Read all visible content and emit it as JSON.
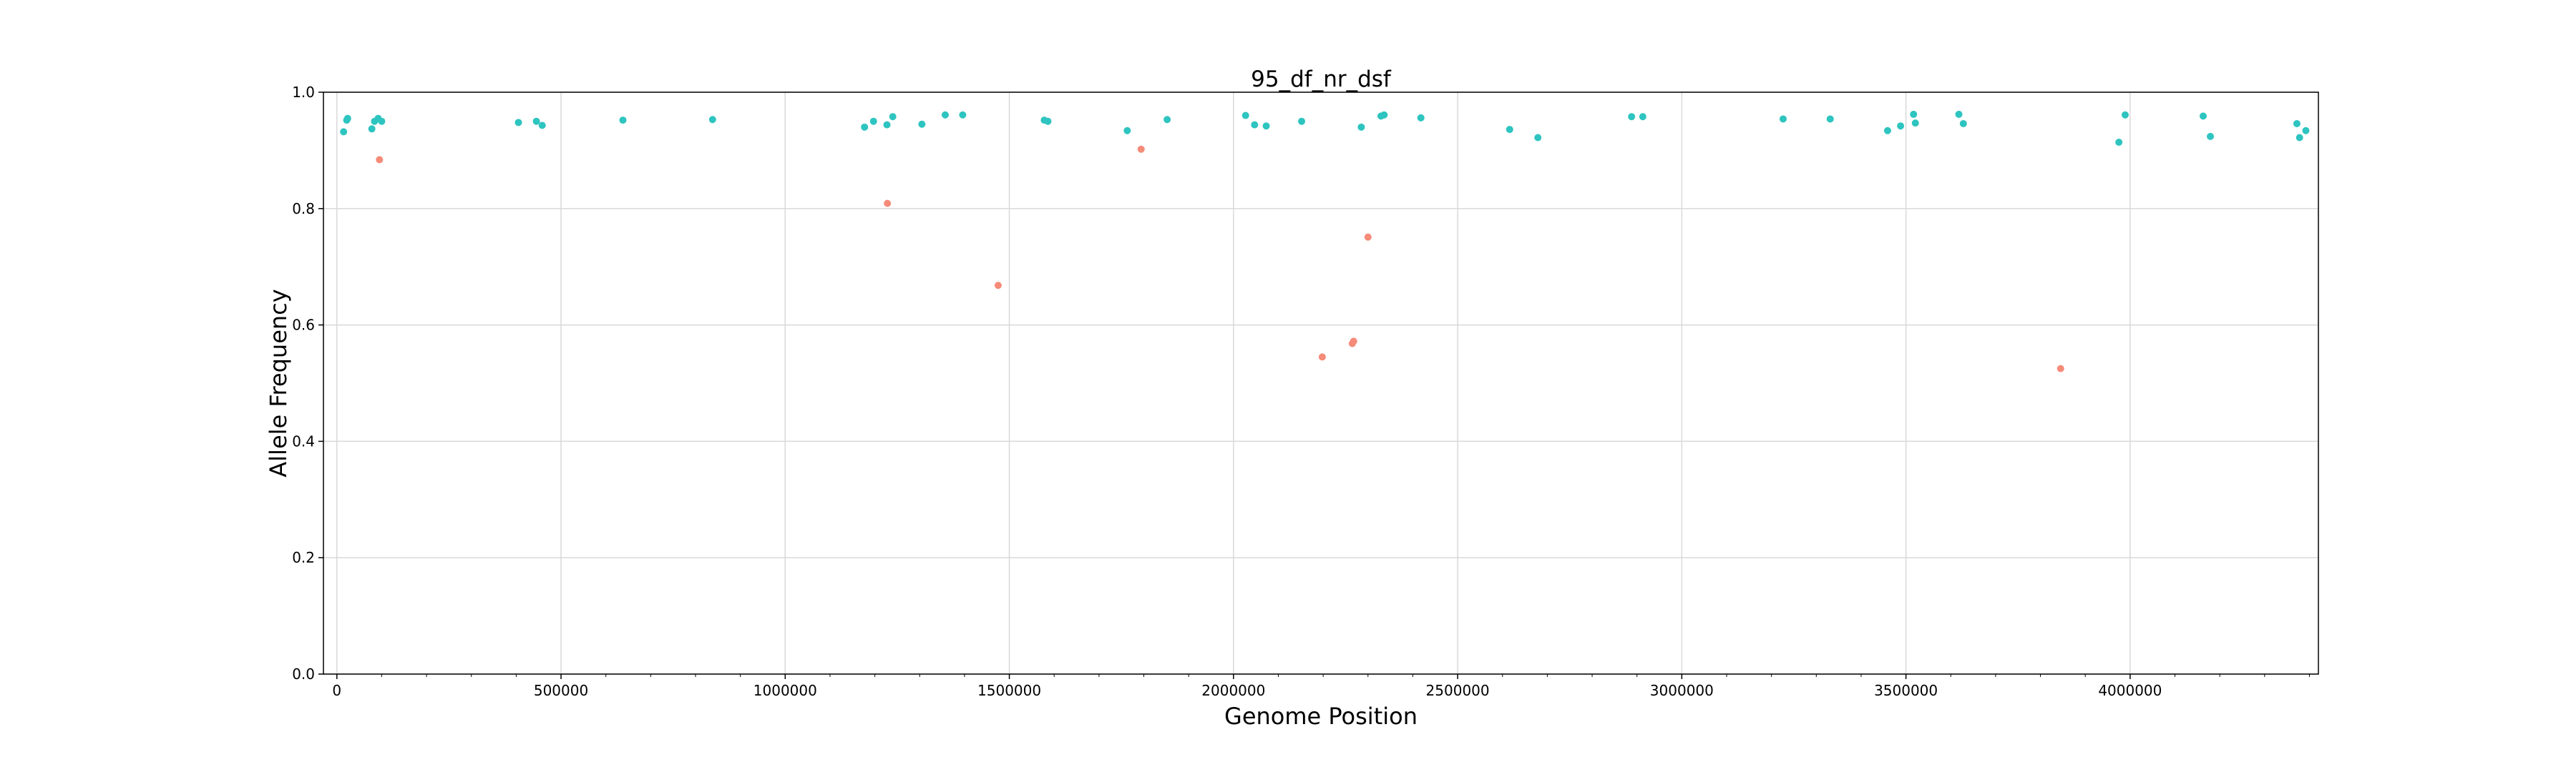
{
  "chart_data": {
    "type": "scatter",
    "title": "95_df_nr_dsf",
    "xlabel": "Genome Position",
    "ylabel": "Allele Frequency",
    "xlim": [
      -30000,
      4420000
    ],
    "ylim": [
      0.0,
      1.0
    ],
    "x_ticks": [
      0,
      500000,
      1000000,
      1500000,
      2000000,
      2500000,
      3000000,
      3500000,
      4000000
    ],
    "y_ticks": [
      0.0,
      0.2,
      0.4,
      0.6,
      0.8,
      1.0
    ],
    "y_tick_labels": [
      "0.0",
      "0.2",
      "0.4",
      "0.6",
      "0.8",
      "1.0"
    ],
    "grid": true,
    "legend": "none",
    "series": [
      {
        "color": "#2ec4c0",
        "points": [
          [
            15000,
            0.932
          ],
          [
            22000,
            0.952
          ],
          [
            24000,
            0.955
          ],
          [
            78000,
            0.937
          ],
          [
            84000,
            0.95
          ],
          [
            92000,
            0.955
          ],
          [
            100000,
            0.95
          ],
          [
            405000,
            0.948
          ],
          [
            445000,
            0.95
          ],
          [
            458000,
            0.943
          ],
          [
            638000,
            0.952
          ],
          [
            838000,
            0.953
          ],
          [
            1177000,
            0.94
          ],
          [
            1197000,
            0.95
          ],
          [
            1227000,
            0.944
          ],
          [
            1240000,
            0.958
          ],
          [
            1305000,
            0.945
          ],
          [
            1357000,
            0.961
          ],
          [
            1396000,
            0.961
          ],
          [
            1578000,
            0.952
          ],
          [
            1586000,
            0.95
          ],
          [
            1763000,
            0.934
          ],
          [
            1852000,
            0.953
          ],
          [
            2027000,
            0.96
          ],
          [
            2047000,
            0.944
          ],
          [
            2073000,
            0.942
          ],
          [
            2152000,
            0.95
          ],
          [
            2285000,
            0.94
          ],
          [
            2329000,
            0.959
          ],
          [
            2336000,
            0.961
          ],
          [
            2418000,
            0.956
          ],
          [
            2616000,
            0.936
          ],
          [
            2679000,
            0.922
          ],
          [
            2888000,
            0.958
          ],
          [
            2913000,
            0.958
          ],
          [
            3226000,
            0.954
          ],
          [
            3331000,
            0.954
          ],
          [
            3459000,
            0.934
          ],
          [
            3488000,
            0.942
          ],
          [
            3517000,
            0.962
          ],
          [
            3521000,
            0.947
          ],
          [
            3618000,
            0.962
          ],
          [
            3628000,
            0.946
          ],
          [
            3975000,
            0.914
          ],
          [
            3989000,
            0.961
          ],
          [
            4163000,
            0.959
          ],
          [
            4179000,
            0.924
          ],
          [
            4372000,
            0.946
          ],
          [
            4378000,
            0.922
          ],
          [
            4392000,
            0.934
          ]
        ]
      },
      {
        "color": "#f58b78",
        "points": [
          [
            95000,
            0.884
          ],
          [
            1228000,
            0.809
          ],
          [
            1475000,
            0.668
          ],
          [
            1794000,
            0.902
          ],
          [
            2198000,
            0.545
          ],
          [
            2265000,
            0.568
          ],
          [
            2268000,
            0.572
          ],
          [
            2300000,
            0.751
          ],
          [
            3845000,
            0.525
          ]
        ]
      }
    ]
  }
}
